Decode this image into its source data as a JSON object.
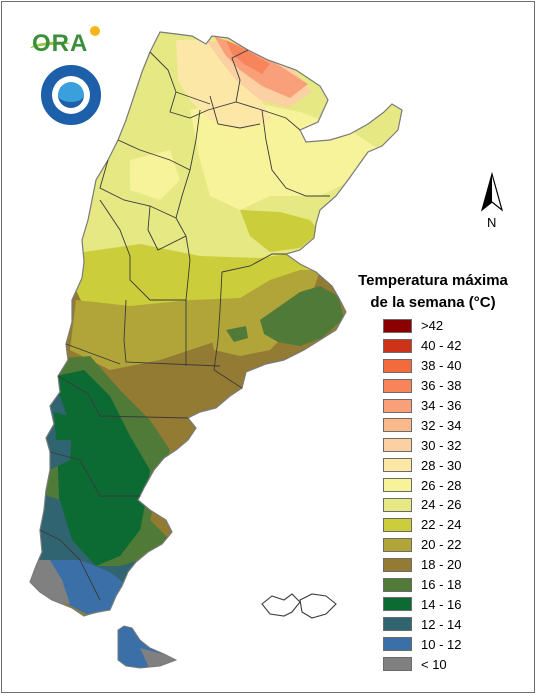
{
  "legend": {
    "title_line1": "Temperatura máxima",
    "title_line2": "de la semana (°C)",
    "items": [
      {
        "label": ">42",
        "color": "#8b0000"
      },
      {
        "label": "40 - 42",
        "color": "#cc3318"
      },
      {
        "label": "38 - 40",
        "color": "#f36b3c"
      },
      {
        "label": "36 - 38",
        "color": "#f7845a"
      },
      {
        "label": "34 - 36",
        "color": "#f9a07a"
      },
      {
        "label": "32 - 34",
        "color": "#fbb98b"
      },
      {
        "label": "30 - 32",
        "color": "#fbd0a2"
      },
      {
        "label": "28 - 30",
        "color": "#fde7a7"
      },
      {
        "label": "26 - 28",
        "color": "#f7f39a"
      },
      {
        "label": "24 - 26",
        "color": "#e5e883"
      },
      {
        "label": "22 - 24",
        "color": "#cbcd3b"
      },
      {
        "label": "20 - 22",
        "color": "#b1a53a"
      },
      {
        "label": "18 - 20",
        "color": "#937b34"
      },
      {
        "label": "16 - 18",
        "color": "#4f7a38"
      },
      {
        "label": "14 - 16",
        "color": "#0b6b32"
      },
      {
        "label": "12 - 14",
        "color": "#2f6470"
      },
      {
        "label": "10 - 12",
        "color": "#3a6fa7"
      },
      {
        "label": "< 10",
        "color": "#808080"
      }
    ]
  },
  "north_arrow": {
    "label": "N"
  },
  "logos": {
    "ora_text": "ORA"
  }
}
